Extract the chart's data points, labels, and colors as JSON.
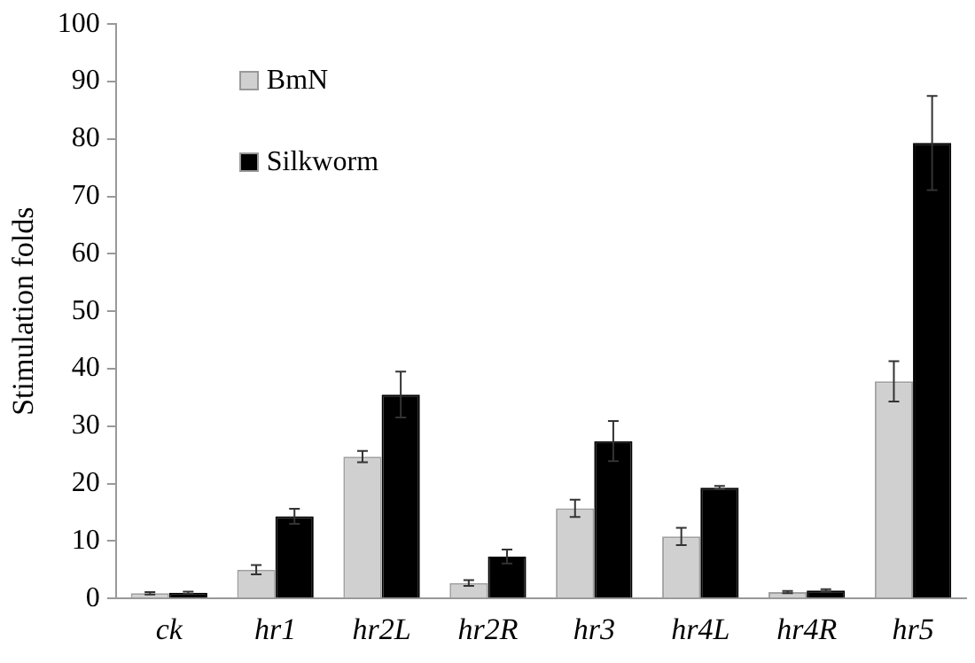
{
  "chart_data": {
    "type": "bar",
    "ylabel": "Stimulation folds",
    "categories": [
      "ck",
      "hr1",
      "hr2L",
      "hr2R",
      "hr3",
      "hr4L",
      "hr4R",
      "hr5"
    ],
    "series": [
      {
        "name": "BmN",
        "color": "#d0d0d0",
        "values": [
          0.9,
          5.0,
          24.7,
          2.7,
          15.7,
          10.8,
          1.1,
          37.8
        ],
        "errors": [
          0.2,
          0.8,
          1.0,
          0.5,
          1.5,
          1.5,
          0.2,
          3.5
        ]
      },
      {
        "name": "Silkworm",
        "color": "#000000",
        "values": [
          1.0,
          14.3,
          35.5,
          7.3,
          27.4,
          19.3,
          1.4,
          79.3
        ],
        "errors": [
          0.2,
          1.3,
          4.0,
          1.2,
          3.5,
          0.3,
          0.2,
          8.2
        ]
      }
    ],
    "ylim": [
      0,
      100
    ],
    "yticks": [
      0,
      10,
      20,
      30,
      40,
      50,
      60,
      70,
      80,
      90,
      100
    ],
    "grid": false,
    "legend": "top left"
  }
}
